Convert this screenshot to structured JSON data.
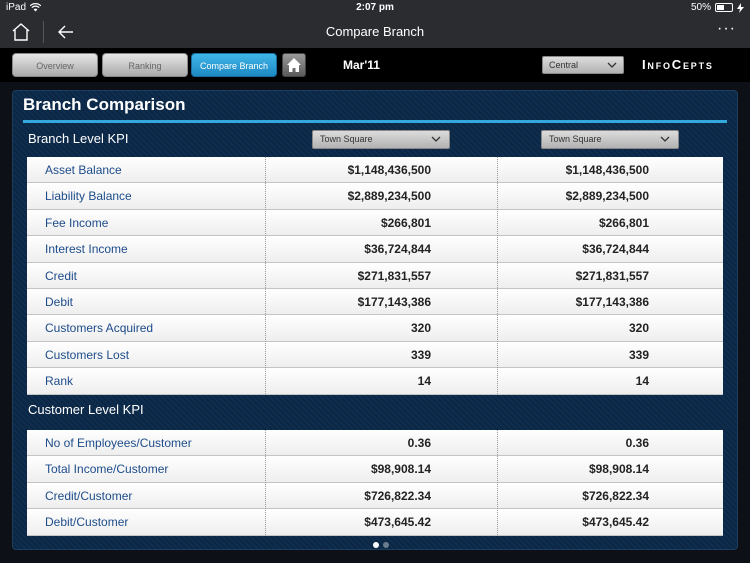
{
  "status_bar": {
    "device": "iPad",
    "time": "2:07 pm",
    "battery": "50%"
  },
  "nav_bar": {
    "title": "Compare Branch",
    "more": "···"
  },
  "toolbar": {
    "tabs": [
      {
        "label": "Overview"
      },
      {
        "label": "Ranking"
      },
      {
        "label": "Compare Branch"
      }
    ],
    "period": "Mar'11",
    "region": "Central",
    "brand": "InfoCepts"
  },
  "panel": {
    "title": "Branch Comparison",
    "branch_section": {
      "title": "Branch Level KPI",
      "branch1": "Town Square",
      "branch2": "Town Square",
      "rows": [
        {
          "label": "Asset Balance",
          "v1": "$1,148,436,500",
          "v2": "$1,148,436,500"
        },
        {
          "label": "Liability Balance",
          "v1": "$2,889,234,500",
          "v2": "$2,889,234,500"
        },
        {
          "label": "Fee Income",
          "v1": "$266,801",
          "v2": "$266,801"
        },
        {
          "label": "Interest Income",
          "v1": "$36,724,844",
          "v2": "$36,724,844"
        },
        {
          "label": "Credit",
          "v1": "$271,831,557",
          "v2": "$271,831,557"
        },
        {
          "label": "Debit",
          "v1": "$177,143,386",
          "v2": "$177,143,386"
        },
        {
          "label": "Customers Acquired",
          "v1": "320",
          "v2": "320"
        },
        {
          "label": "Customers Lost",
          "v1": "339",
          "v2": "339"
        },
        {
          "label": "Rank",
          "v1": "14",
          "v2": "14"
        }
      ]
    },
    "customer_section": {
      "title": "Customer  Level KPI",
      "rows": [
        {
          "label": "No of Employees/Customer",
          "v1": "0.36",
          "v2": "0.36"
        },
        {
          "label": "Total Income/Customer",
          "v1": "$98,908.14",
          "v2": "$98,908.14"
        },
        {
          "label": "Credit/Customer",
          "v1": "$726,822.34",
          "v2": "$726,822.34"
        },
        {
          "label": "Debit/Customer",
          "v1": "$473,645.42",
          "v2": "$473,645.42"
        }
      ]
    }
  }
}
